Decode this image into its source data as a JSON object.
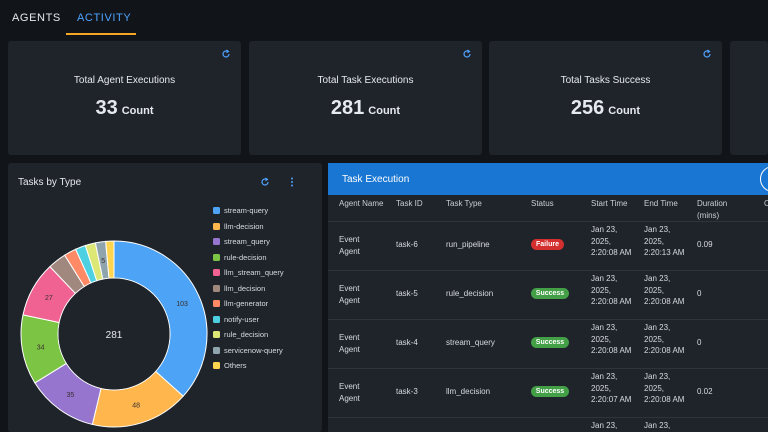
{
  "tabs": [
    {
      "label": "AGENTS",
      "active": false
    },
    {
      "label": "ACTIVITY",
      "active": true
    }
  ],
  "colors": {
    "accent": "#4ea3ff",
    "tab_underline": "#f5a623",
    "header_blue": "#1976d2",
    "failure": "#d32f2f",
    "success": "#43a047"
  },
  "stats": [
    {
      "label": "Total Agent Executions",
      "value": "33",
      "unit": "Count",
      "icon": "refresh-icon"
    },
    {
      "label": "Total Task Executions",
      "value": "281",
      "unit": "Count",
      "icon": "refresh-icon"
    },
    {
      "label": "Total Tasks Success",
      "value": "256",
      "unit": "Count",
      "icon": "refresh-icon"
    }
  ],
  "tasks_by_type": {
    "title": "Tasks by Type",
    "total_label": "281",
    "icons": [
      "refresh-icon",
      "more-vertical-icon"
    ]
  },
  "chart_data": {
    "type": "pie",
    "categories": [
      "stream-query",
      "llm-decision",
      "stream_query",
      "rule-decision",
      "llm_stream_query",
      "llm_decision",
      "llm-generator",
      "notify-user",
      "rule_decision",
      "servicenow-query",
      "Others"
    ],
    "values": [
      103,
      48,
      35,
      34,
      27,
      9,
      6,
      5,
      5,
      5,
      4
    ],
    "slice_labels": [
      "103",
      "48",
      "35",
      "34",
      "27",
      "",
      "",
      "",
      "",
      "5",
      ""
    ],
    "colors": [
      "#4da3f5",
      "#ffb74d",
      "#9575cd",
      "#7cc544",
      "#f06292",
      "#a1887f",
      "#ff8a65",
      "#4dd0e1",
      "#dce775",
      "#90a4ae",
      "#ffd54f"
    ],
    "center_total": "281",
    "legend_position": "right"
  },
  "task_execution": {
    "title": "Task Execution",
    "columns": [
      "Agent Name",
      "Task ID",
      "Task Type",
      "Status",
      "Start Time",
      "End Time",
      "Duration (mins)",
      "C"
    ],
    "rows": [
      {
        "agent": "Event Agent",
        "task_id": "task-6",
        "task_type": "run_pipeline",
        "status": "Failure",
        "start": "Jan 23, 2025, 2:20:08 AM",
        "end": "Jan 23, 2025, 2:20:13 AM",
        "duration": "0.09"
      },
      {
        "agent": "Event Agent",
        "task_id": "task-5",
        "task_type": "rule_decision",
        "status": "Success",
        "start": "Jan 23, 2025, 2:20:08 AM",
        "end": "Jan 23, 2025, 2:20:08 AM",
        "duration": "0"
      },
      {
        "agent": "Event Agent",
        "task_id": "task-4",
        "task_type": "stream_query",
        "status": "Success",
        "start": "Jan 23, 2025, 2:20:08 AM",
        "end": "Jan 23, 2025, 2:20:08 AM",
        "duration": "0"
      },
      {
        "agent": "Event Agent",
        "task_id": "task-3",
        "task_type": "llm_decision",
        "status": "Success",
        "start": "Jan 23, 2025, 2:20:07 AM",
        "end": "Jan 23, 2025, 2:20:08 AM",
        "duration": "0.02"
      },
      {
        "agent": "",
        "task_id": "",
        "task_type": "",
        "status": "",
        "start": "Jan 23, 2025,",
        "end": "Jan 23, 2025,",
        "duration": ""
      }
    ]
  }
}
